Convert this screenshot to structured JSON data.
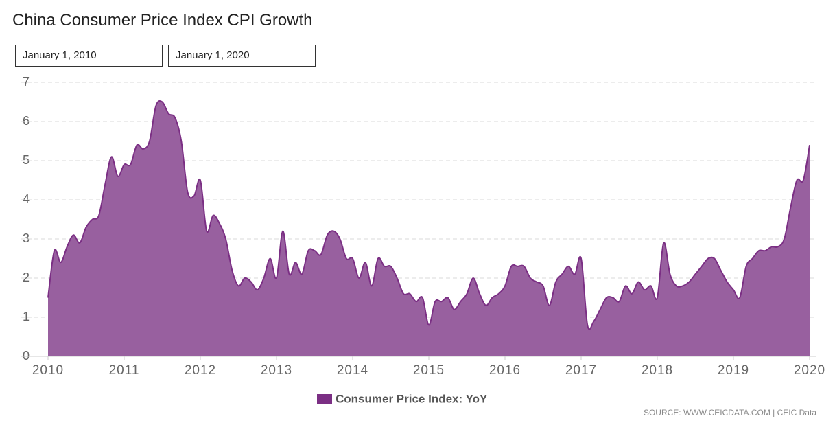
{
  "controls": {
    "start": "January 1, 2010",
    "end": "January 1, 2020"
  },
  "source": "SOURCE: WWW.CEICDATA.COM | CEIC Data",
  "chart_data": {
    "type": "area",
    "title": "China Consumer Price Index CPI Growth",
    "x": [
      2010,
      2010.083,
      2010.167,
      2010.25,
      2010.333,
      2010.417,
      2010.5,
      2010.583,
      2010.667,
      2010.75,
      2010.833,
      2010.917,
      2011,
      2011.083,
      2011.167,
      2011.25,
      2011.333,
      2011.417,
      2011.5,
      2011.583,
      2011.667,
      2011.75,
      2011.833,
      2011.917,
      2012,
      2012.083,
      2012.167,
      2012.25,
      2012.333,
      2012.417,
      2012.5,
      2012.583,
      2012.667,
      2012.75,
      2012.833,
      2012.917,
      2013,
      2013.083,
      2013.167,
      2013.25,
      2013.333,
      2013.417,
      2013.5,
      2013.583,
      2013.667,
      2013.75,
      2013.833,
      2013.917,
      2014,
      2014.083,
      2014.167,
      2014.25,
      2014.333,
      2014.417,
      2014.5,
      2014.583,
      2014.667,
      2014.75,
      2014.833,
      2014.917,
      2015,
      2015.083,
      2015.167,
      2015.25,
      2015.333,
      2015.417,
      2015.5,
      2015.583,
      2015.667,
      2015.75,
      2015.833,
      2015.917,
      2016,
      2016.083,
      2016.167,
      2016.25,
      2016.333,
      2016.417,
      2016.5,
      2016.583,
      2016.667,
      2016.75,
      2016.833,
      2016.917,
      2017,
      2017.083,
      2017.167,
      2017.25,
      2017.333,
      2017.417,
      2017.5,
      2017.583,
      2017.667,
      2017.75,
      2017.833,
      2017.917,
      2018,
      2018.083,
      2018.167,
      2018.25,
      2018.333,
      2018.417,
      2018.5,
      2018.583,
      2018.667,
      2018.75,
      2018.833,
      2018.917,
      2019,
      2019.083,
      2019.167,
      2019.25,
      2019.333,
      2019.417,
      2019.5,
      2019.583,
      2019.667,
      2019.75,
      2019.833,
      2019.917,
      2020
    ],
    "series": [
      {
        "name": "Consumer Price Index: YoY",
        "color": "#7b2f84",
        "fill": "#98609f",
        "values": [
          1.5,
          2.7,
          2.4,
          2.8,
          3.1,
          2.9,
          3.3,
          3.5,
          3.6,
          4.4,
          5.1,
          4.6,
          4.9,
          4.9,
          5.4,
          5.3,
          5.5,
          6.4,
          6.5,
          6.2,
          6.1,
          5.5,
          4.2,
          4.1,
          4.5,
          3.2,
          3.6,
          3.4,
          3.0,
          2.2,
          1.8,
          2.0,
          1.9,
          1.7,
          2.0,
          2.5,
          2.0,
          3.2,
          2.1,
          2.4,
          2.1,
          2.7,
          2.7,
          2.6,
          3.1,
          3.2,
          3.0,
          2.5,
          2.5,
          2.0,
          2.4,
          1.8,
          2.5,
          2.3,
          2.3,
          2.0,
          1.6,
          1.6,
          1.4,
          1.5,
          0.8,
          1.4,
          1.4,
          1.5,
          1.2,
          1.4,
          1.6,
          2.0,
          1.6,
          1.3,
          1.5,
          1.6,
          1.8,
          2.3,
          2.3,
          2.3,
          2.0,
          1.9,
          1.8,
          1.3,
          1.9,
          2.1,
          2.3,
          2.1,
          2.5,
          0.8,
          0.9,
          1.2,
          1.5,
          1.5,
          1.4,
          1.8,
          1.6,
          1.9,
          1.7,
          1.8,
          1.5,
          2.9,
          2.1,
          1.8,
          1.8,
          1.9,
          2.1,
          2.3,
          2.5,
          2.5,
          2.2,
          1.9,
          1.7,
          1.5,
          2.3,
          2.5,
          2.7,
          2.7,
          2.8,
          2.8,
          3.0,
          3.8,
          4.5,
          4.5,
          5.4
        ]
      }
    ],
    "xlim": [
      2010,
      2020
    ],
    "xticks": [
      2010,
      2011,
      2012,
      2013,
      2014,
      2015,
      2016,
      2017,
      2018,
      2019,
      2020
    ],
    "ylim": [
      0,
      7
    ],
    "yticks": [
      0,
      1,
      2,
      3,
      4,
      5,
      6,
      7
    ],
    "grid": true
  }
}
